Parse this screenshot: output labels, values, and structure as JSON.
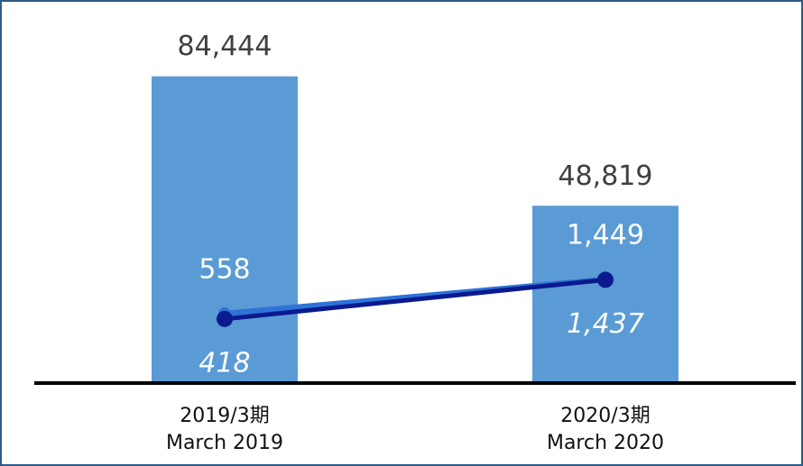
{
  "chart_data": {
    "type": "bar",
    "categories": [
      [
        "2019/3期",
        "March 2019"
      ],
      [
        "2020/3期",
        "March 2020"
      ]
    ],
    "ylim": [
      0,
      100000
    ],
    "y2lim": [
      -1250,
      8200
    ],
    "series": [
      {
        "name": null,
        "type": "bar",
        "color": "#5b9bd5",
        "values": [
          84444,
          48819
        ],
        "value_labels": [
          "84,444",
          "48,819"
        ]
      },
      {
        "name": null,
        "type": "line",
        "axis": "y2",
        "color": "#2f72d8",
        "values": [
          558,
          1449
        ],
        "value_labels": [
          "558",
          "1,449"
        ]
      },
      {
        "name": null,
        "type": "line",
        "axis": "y2",
        "color": "#0b1a8f",
        "values": [
          418,
          1437
        ],
        "value_labels": [
          "418",
          "1,437"
        ]
      }
    ]
  }
}
